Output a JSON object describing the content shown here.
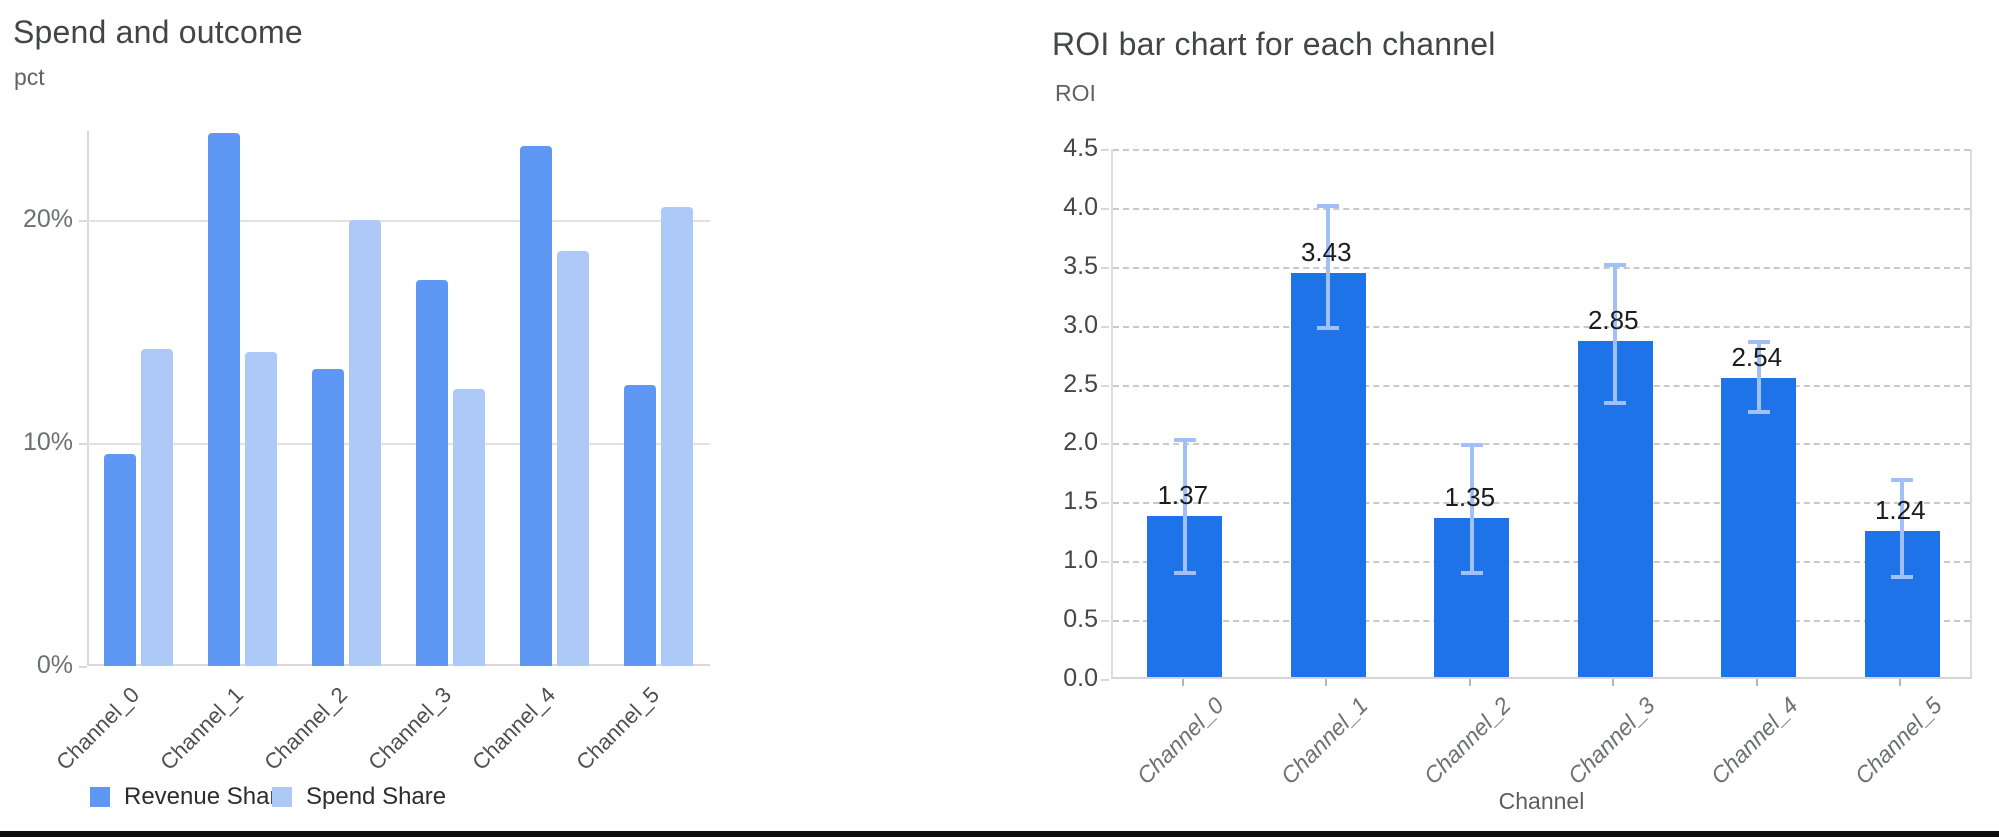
{
  "left_chart": {
    "title": "Spend and outcome",
    "y_axis_unit": "pct"
  },
  "right_chart": {
    "title": "ROI bar chart for each channel",
    "y_axis_unit": "ROI",
    "x_axis_title": "Channel"
  },
  "chart_data": [
    {
      "type": "bar",
      "title": "Spend and outcome",
      "ylabel": "pct",
      "xlabel": "",
      "categories": [
        "Channel_0",
        "Channel_1",
        "Channel_2",
        "Channel_3",
        "Channel_4",
        "Channel_5"
      ],
      "series": [
        {
          "name": "Revenue Share",
          "color": "#5f97f4",
          "values": [
            9.5,
            23.9,
            13.3,
            17.3,
            23.3,
            12.6
          ]
        },
        {
          "name": "Spend Share",
          "color": "#adc9f8",
          "values": [
            14.2,
            14.1,
            20.0,
            12.4,
            18.6,
            20.6
          ]
        }
      ],
      "y_ticks": [
        {
          "value": 20,
          "label": "20%"
        },
        {
          "value": 10,
          "label": "10%"
        },
        {
          "value": 0,
          "label": "0%"
        }
      ],
      "ylim": [
        0,
        24
      ],
      "grid": "horizontal-solid",
      "legend_position": "bottom"
    },
    {
      "type": "bar",
      "title": "ROI bar chart for each channel",
      "ylabel": "ROI",
      "xlabel": "Channel",
      "categories": [
        "Channel_0",
        "Channel_1",
        "Channel_2",
        "Channel_3",
        "Channel_4",
        "Channel_5"
      ],
      "values": [
        1.37,
        3.43,
        1.35,
        2.85,
        2.54,
        1.24
      ],
      "data_labels": [
        "1.37",
        "3.43",
        "1.35",
        "2.85",
        "2.54",
        "1.24"
      ],
      "error_low": [
        0.88,
        2.96,
        0.88,
        2.33,
        2.25,
        0.85
      ],
      "error_high": [
        2.05,
        4.03,
        2.0,
        3.53,
        2.88,
        1.71
      ],
      "y_ticks": [
        "4.5",
        "4.0",
        "3.5",
        "3.0",
        "2.5",
        "2.0",
        "1.5",
        "1.0",
        "0.5",
        "0.0"
      ],
      "ylim": [
        0,
        4.5
      ],
      "y_tick_step": 0.5,
      "grid": "horizontal-dashed",
      "bar_color": "#1f73e8",
      "error_color": "#a2c0f8",
      "legend_position": "none"
    }
  ]
}
